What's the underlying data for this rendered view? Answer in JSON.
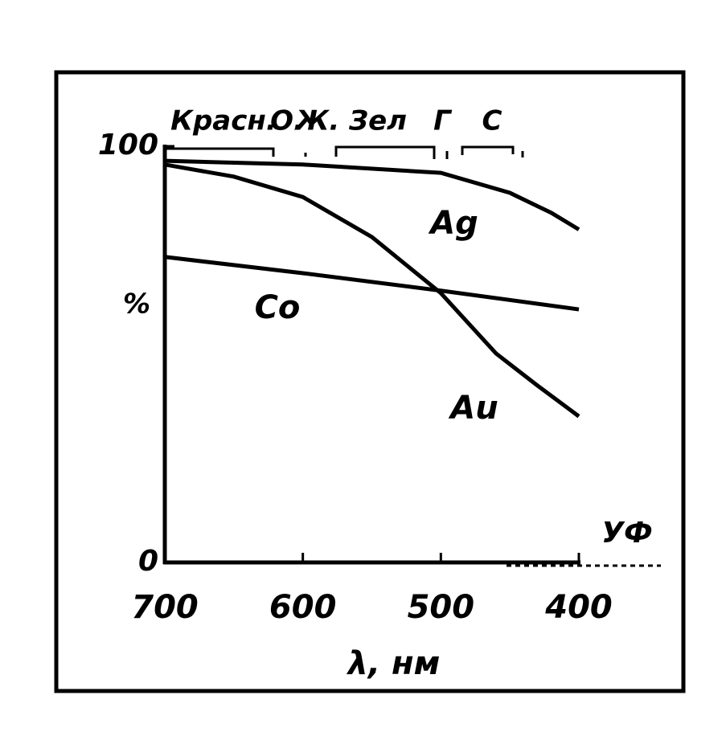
{
  "chart_data": {
    "type": "line",
    "x_label": "λ, нм",
    "y_label": "%",
    "xlim": [
      700,
      400
    ],
    "xticks": [
      700,
      600,
      500,
      400
    ],
    "ylim": [
      0,
      100
    ],
    "yticks": [
      0,
      100
    ],
    "x_extension_label": "УФ",
    "spectrum_labels": [
      "Красн.",
      "О.",
      "Ж.",
      "Зел",
      "Г",
      "С"
    ],
    "series": [
      {
        "name": "Ag",
        "color": "#000000",
        "x": [
          700,
          600,
          500,
          450,
          420,
          400
        ],
        "values": [
          96.5,
          95.6,
          93.6,
          88.8,
          84,
          80
        ]
      },
      {
        "name": "Au",
        "color": "#000000",
        "x": [
          700,
          650,
          600,
          550,
          500,
          460,
          430,
          400
        ],
        "values": [
          95.6,
          92.7,
          87.8,
          78.2,
          64.7,
          50.2,
          42.5,
          35.1
        ]
      },
      {
        "name": "Co",
        "color": "#000000",
        "x": [
          700,
          600,
          500,
          400
        ],
        "values": [
          73.4,
          69.5,
          65.3,
          60.8
        ]
      }
    ]
  }
}
